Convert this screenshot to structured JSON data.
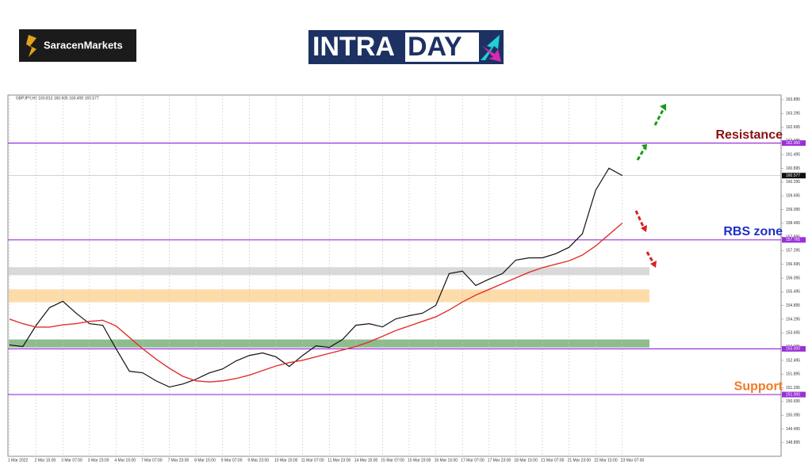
{
  "brand": {
    "name": "SaracenMarkets",
    "banner_left": "INTRA",
    "banner_right": "DAY"
  },
  "chart_data": {
    "type": "line",
    "symbol_info": "GBPJPY,H1  160.813 160.935 160.490 160.577",
    "categories": [
      "1 Mar 2022",
      null,
      "2 Mar 15:00",
      null,
      "3 Mar 07:00",
      null,
      "3 Mar 23:00",
      null,
      "4 Mar 15:00",
      null,
      "7 Mar 07:00",
      null,
      "7 Mar 23:00",
      null,
      "8 Mar 15:00",
      null,
      "9 Mar 07:00",
      null,
      "9 Mar 23:00",
      null,
      "10 Mar 15:00",
      null,
      "11 Mar 07:00",
      null,
      "11 Mar 23:00",
      null,
      "14 Mar 15:00",
      null,
      "15 Mar 07:00",
      null,
      "15 Mar 23:00",
      null,
      "16 Mar 15:00",
      null,
      "17 Mar 07:00",
      null,
      "17 Mar 23:00",
      null,
      "18 Mar 15:00",
      null,
      "21 Mar 07:00",
      null,
      "21 Mar 23:00",
      null,
      "22 Mar 15:00",
      null,
      "23 Mar 07:00"
    ],
    "series": [
      {
        "color": "#111111",
        "values": [
          153.17,
          153.1,
          154.03,
          154.8,
          155.08,
          154.56,
          154.1,
          154.03,
          153.0,
          152.02,
          151.95,
          151.6,
          151.33,
          151.46,
          151.67,
          151.95,
          152.12,
          152.47,
          152.71,
          152.82,
          152.65,
          152.23,
          152.71,
          153.13,
          153.06,
          153.41,
          154.03,
          154.1,
          153.96,
          154.31,
          154.45,
          154.56,
          154.9,
          156.29,
          156.4,
          155.77,
          156.05,
          156.29,
          156.88,
          156.98,
          156.98,
          157.16,
          157.44,
          158.03,
          159.94,
          160.9,
          160.58
        ]
      },
      {
        "color": "#e0302a",
        "values": [
          154.3,
          154.1,
          153.95,
          153.95,
          154.05,
          154.1,
          154.2,
          154.25,
          154.0,
          153.5,
          153.0,
          152.55,
          152.15,
          151.8,
          151.6,
          151.55,
          151.6,
          151.7,
          151.85,
          152.05,
          152.25,
          152.4,
          152.5,
          152.65,
          152.8,
          152.95,
          153.1,
          153.3,
          153.55,
          153.8,
          154.0,
          154.2,
          154.4,
          154.7,
          155.05,
          155.35,
          155.6,
          155.85,
          156.1,
          156.35,
          156.55,
          156.7,
          156.85,
          157.1,
          157.5,
          158.0,
          158.5
        ]
      }
    ],
    "ylim": [
      148.3,
      164.1
    ],
    "yticks": [
      163.895,
      163.295,
      162.695,
      162.095,
      161.495,
      160.895,
      160.295,
      159.695,
      159.095,
      158.495,
      157.895,
      157.295,
      156.695,
      156.095,
      155.495,
      154.895,
      154.295,
      153.695,
      153.095,
      152.495,
      151.895,
      151.295,
      150.695,
      150.095,
      149.495,
      148.895
    ],
    "zones": [
      {
        "from": 156.22,
        "to": 156.57,
        "color": "#d9d9d9"
      },
      {
        "from": 155.04,
        "to": 155.6,
        "color": "#fddcaa"
      },
      {
        "from": 153.06,
        "to": 153.41,
        "color": "#8fbc8f"
      }
    ],
    "levels": [
      {
        "value": 162.0,
        "label": "162.000",
        "note": "Resistance",
        "note_color": "#8b1010"
      },
      {
        "value": 157.765,
        "label": "157.765",
        "note": "RBS zone",
        "note_color": "#1d2fc9"
      },
      {
        "value": 153.0,
        "label": "153.000"
      },
      {
        "value": 151.0,
        "label": "151.000",
        "note": "Support",
        "note_color": "#f07a26"
      }
    ],
    "level_color": "#9b30d9",
    "last_price": {
      "value": 160.577,
      "label": "160.577"
    },
    "grid": true
  }
}
